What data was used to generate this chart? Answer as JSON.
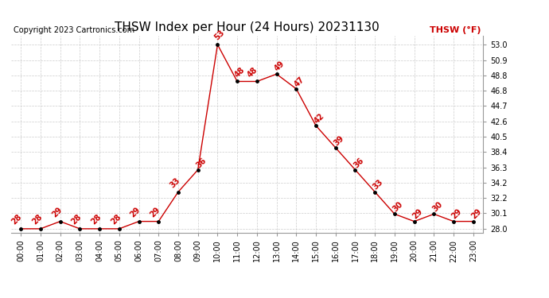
{
  "title": "THSW Index per Hour (24 Hours) 20231130",
  "copyright": "Copyright 2023 Cartronics.com",
  "legend_label": "THSW (°F)",
  "hours": [
    0,
    1,
    2,
    3,
    4,
    5,
    6,
    7,
    8,
    9,
    10,
    11,
    12,
    13,
    14,
    15,
    16,
    17,
    18,
    19,
    20,
    21,
    22,
    23
  ],
  "values": [
    28,
    28,
    29,
    28,
    28,
    28,
    29,
    29,
    33,
    36,
    53,
    48,
    48,
    49,
    47,
    42,
    39,
    36,
    33,
    30,
    29,
    30,
    29,
    29
  ],
  "line_color": "#cc0000",
  "marker_color": "#000000",
  "label_color": "#cc0000",
  "background_color": "#ffffff",
  "grid_color": "#cccccc",
  "ylim_min": 27.5,
  "ylim_max": 54.2,
  "yticks": [
    28.0,
    30.1,
    32.2,
    34.2,
    36.3,
    38.4,
    40.5,
    42.6,
    44.7,
    46.8,
    48.8,
    50.9,
    53.0
  ],
  "title_fontsize": 11,
  "copyright_fontsize": 7,
  "label_fontsize": 7,
  "legend_fontsize": 8,
  "tick_fontsize": 7
}
